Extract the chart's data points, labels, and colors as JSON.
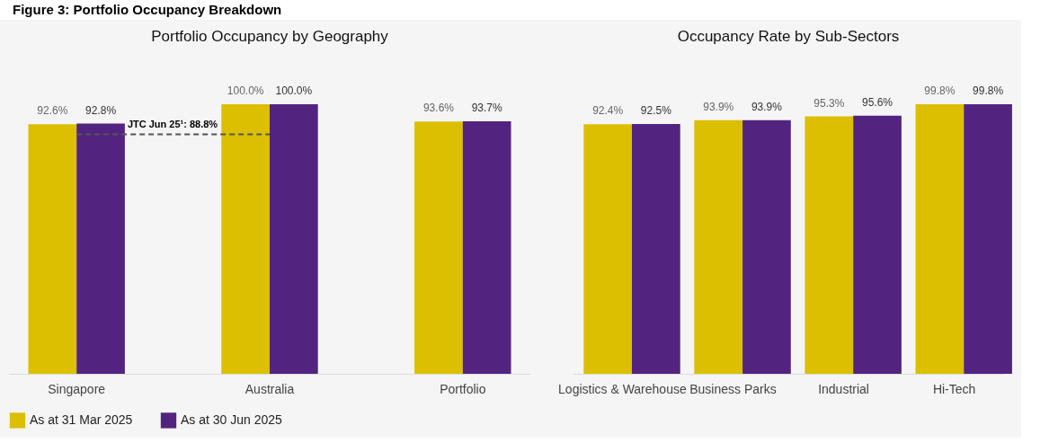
{
  "chart_data": [
    {
      "type": "bar",
      "title": "Portfolio Occupancy by Geography",
      "annotations": [
        "Figure 3: Portfolio Occupancy Breakdown"
      ],
      "categories": [
        "Singapore",
        "Australia",
        "Portfolio"
      ],
      "series": [
        {
          "name": "As at 31 Mar 2025",
          "color": "#dcbf00",
          "values": [
            92.6,
            100.0,
            93.6
          ],
          "value_labels": [
            "92.6%",
            "100.0%",
            "93.6%"
          ]
        },
        {
          "name": "As at 30 Jun 2025",
          "color": "#52247f",
          "values": [
            92.8,
            100.0,
            93.7
          ],
          "value_labels": [
            "92.8%",
            "100.0%",
            "93.7%"
          ]
        }
      ],
      "ref_lines": [
        {
          "axis": "y",
          "value": 88.8,
          "label": "JTC Jun 25¹: 88.8%",
          "line_style": "dashed",
          "color": "#555555"
        }
      ],
      "legend": "bottom",
      "grid": false
    },
    {
      "type": "bar",
      "title": "Occupancy Rate by Sub-Sectors",
      "categories": [
        "Logistics & Warehouse",
        "Business Parks",
        "Industrial",
        "Hi-Tech"
      ],
      "series": [
        {
          "name": "As at 31 Mar 2025",
          "color": "#dcbf00",
          "values": [
            92.4,
            93.9,
            95.3,
            99.8
          ],
          "value_labels": [
            "92.4%",
            "93.9%",
            "95.3%",
            "99.8%"
          ]
        },
        {
          "name": "As at 30 Jun 2025",
          "color": "#52247f",
          "values": [
            92.5,
            93.9,
            95.6,
            99.8
          ],
          "value_labels": [
            "92.5%",
            "93.9%",
            "95.6%",
            "99.8%"
          ]
        }
      ],
      "legend": "bottom",
      "grid": false
    }
  ]
}
